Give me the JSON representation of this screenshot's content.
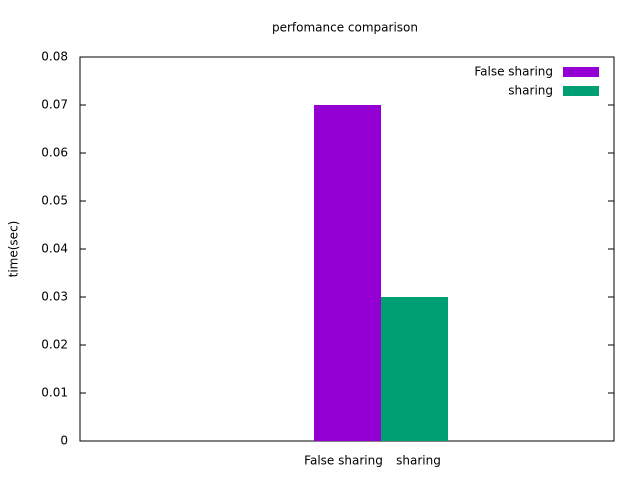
{
  "chart_data": {
    "type": "bar",
    "title": "perfomance comparison",
    "y_label": "time(sec)",
    "categories": [
      "False sharing",
      "sharing"
    ],
    "values": [
      0.07,
      0.03
    ],
    "colors": [
      "#9400d3",
      "#009e73"
    ],
    "ylim": [
      0,
      0.08
    ],
    "yticks": [
      0,
      0.01,
      0.02,
      0.03,
      0.04,
      0.05,
      0.06,
      0.07,
      0.08
    ],
    "grid": false,
    "legend": "top-right"
  }
}
